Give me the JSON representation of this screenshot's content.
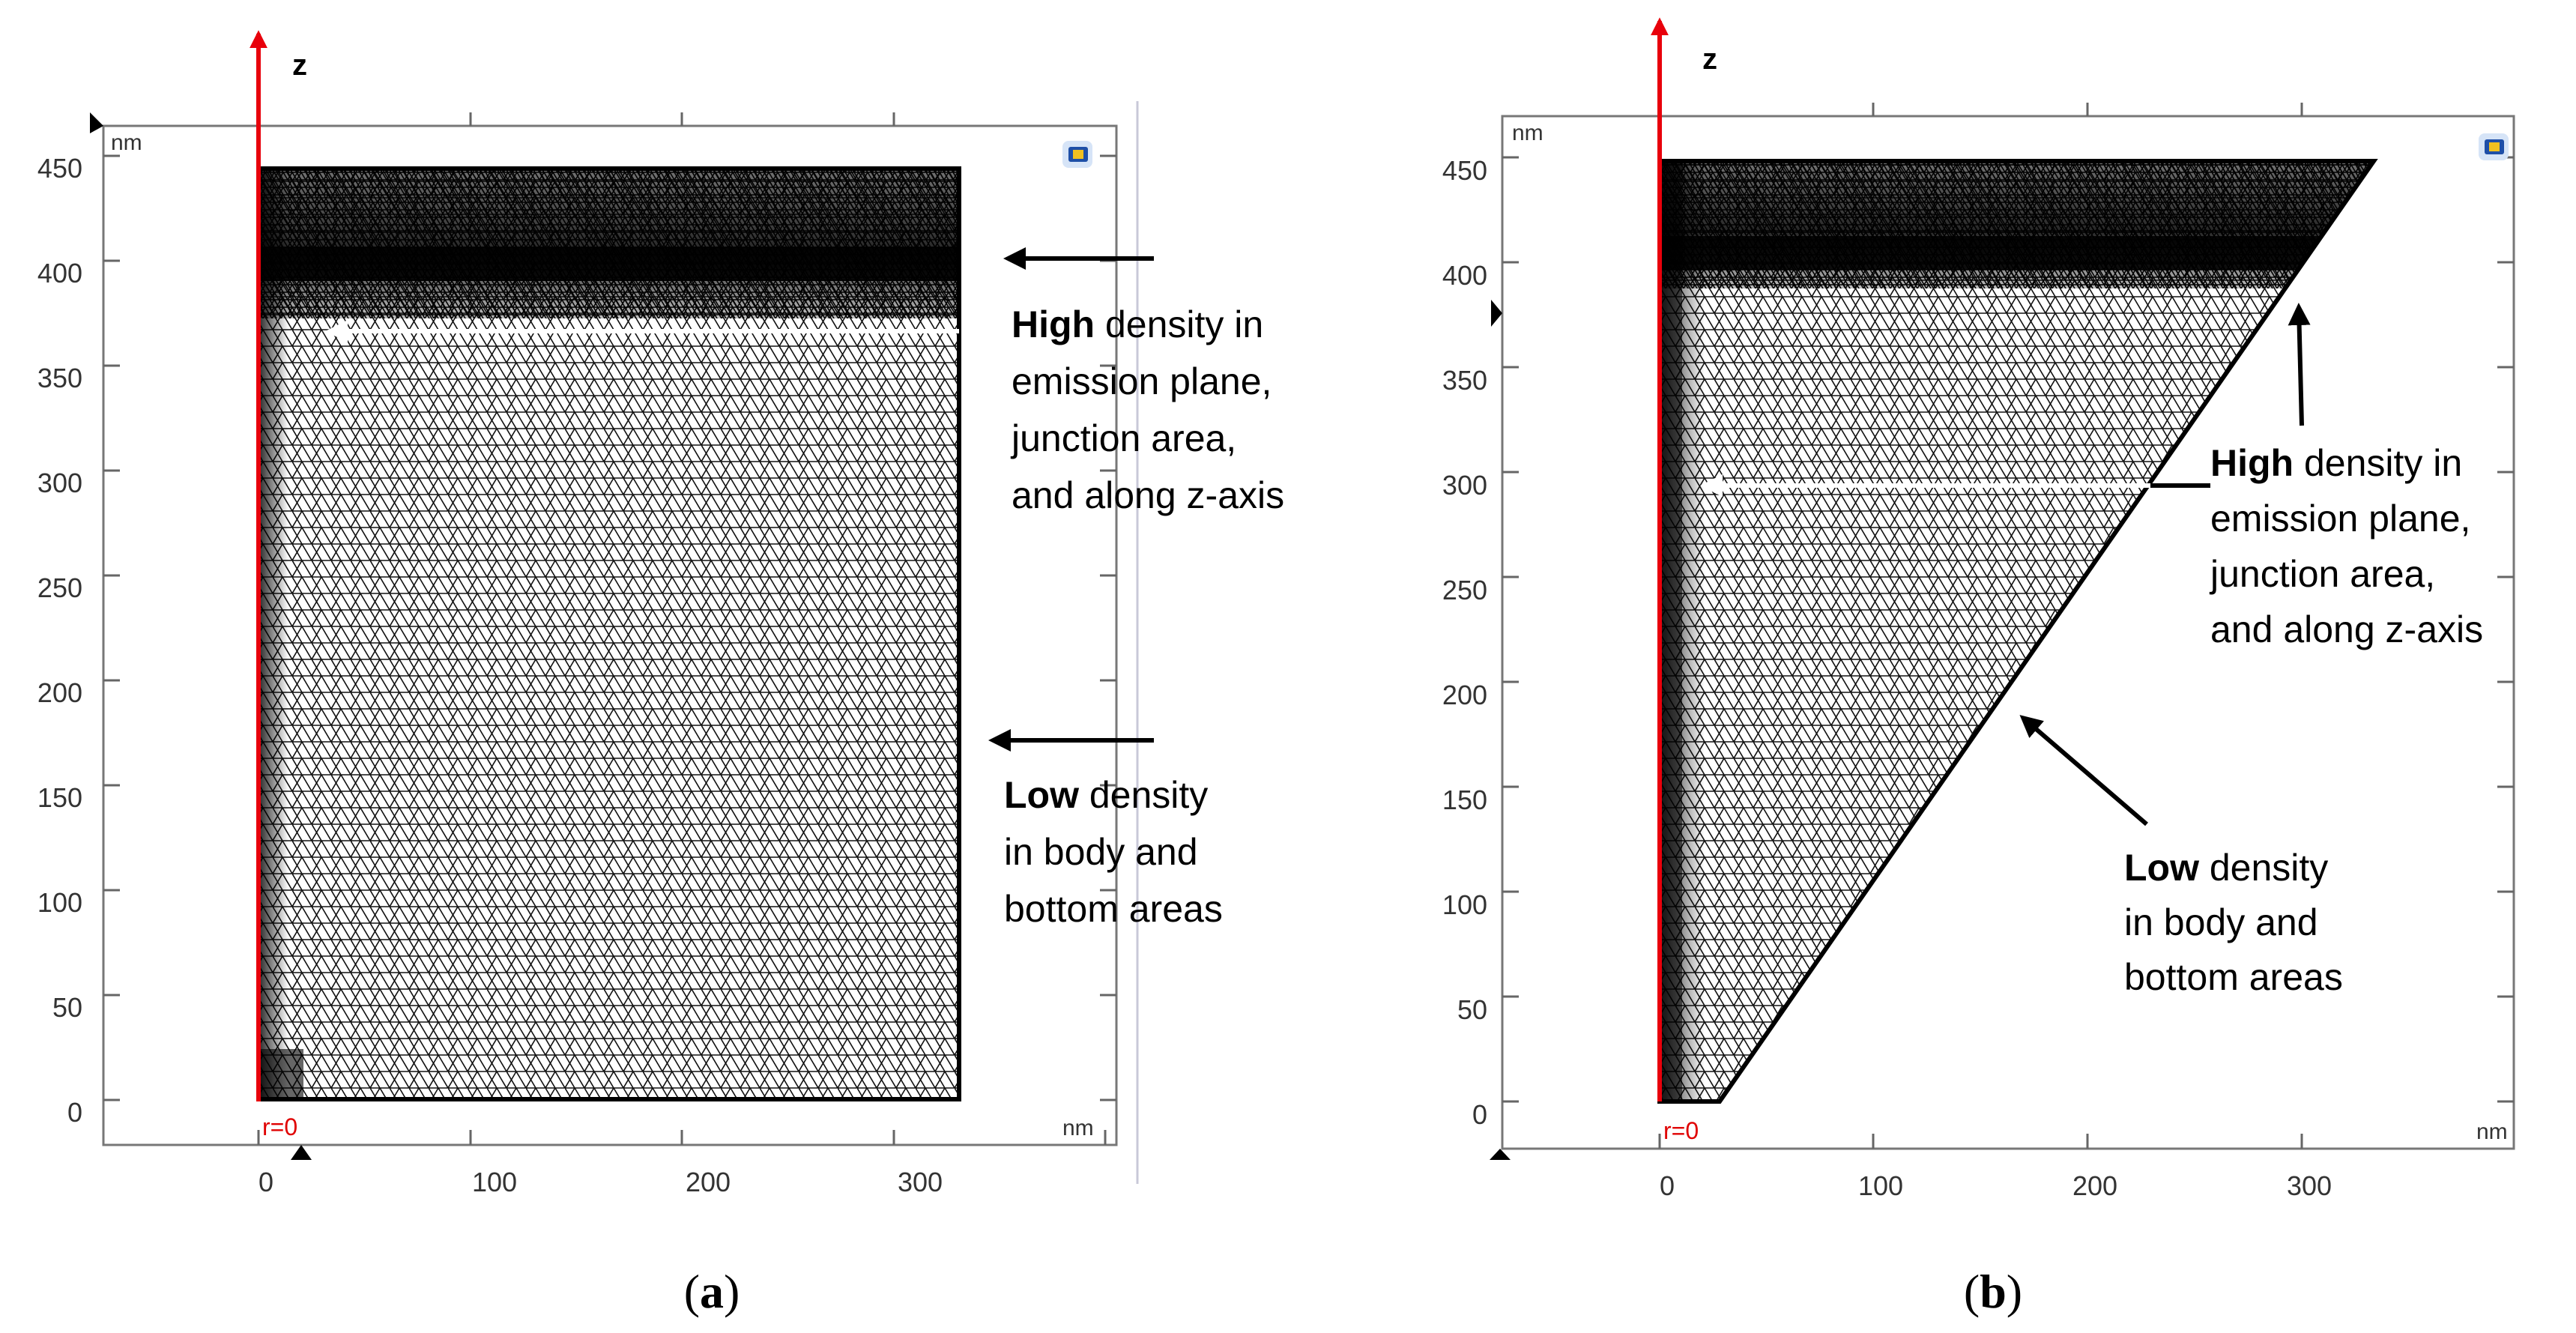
{
  "panels": [
    {
      "id": "a",
      "caption_open": "(",
      "caption_letter": "a",
      "caption_close": ")",
      "shape": "rectangle",
      "axis_z_label": "z",
      "unit_top": "nm",
      "unit_right": "nm",
      "origin_label": "r=0",
      "y_ticks": [
        "0",
        "50",
        "100",
        "150",
        "200",
        "250",
        "300",
        "350",
        "400",
        "450"
      ],
      "x_ticks": [
        "0",
        "100",
        "200",
        "300"
      ],
      "high_density_text": {
        "bold": "High",
        "line1_rest": " density in",
        "line2": "emission plane,",
        "line3": "junction area,",
        "line4": "and along z-axis"
      },
      "low_density_text": {
        "bold": "Low",
        "line1_rest": " density",
        "line2": "in body and",
        "line3": "bottom areas"
      }
    },
    {
      "id": "b",
      "caption_open": "(",
      "caption_letter": "b",
      "caption_close": ")",
      "shape": "triangle",
      "axis_z_label": "z",
      "unit_top": "nm",
      "unit_right": "nm",
      "origin_label": "r=0",
      "y_ticks": [
        "0",
        "50",
        "100",
        "150",
        "200",
        "250",
        "300",
        "350",
        "400",
        "450"
      ],
      "x_ticks": [
        "0",
        "100",
        "200",
        "300"
      ],
      "high_density_text": {
        "bold": "High",
        "line1_rest": " density in",
        "line2": "emission plane,",
        "line3": "junction area,",
        "line4": "and along z-axis"
      },
      "low_density_text": {
        "bold": "Low",
        "line1_rest": " density",
        "line2": "in body and",
        "line3": "bottom areas"
      }
    }
  ],
  "colors": {
    "axis_arrow": "#e8000b",
    "mesh": "#111111",
    "frame": "#555555",
    "annotation_arrow_dark": "#000000",
    "annotation_arrow_light": "#ffffff"
  }
}
